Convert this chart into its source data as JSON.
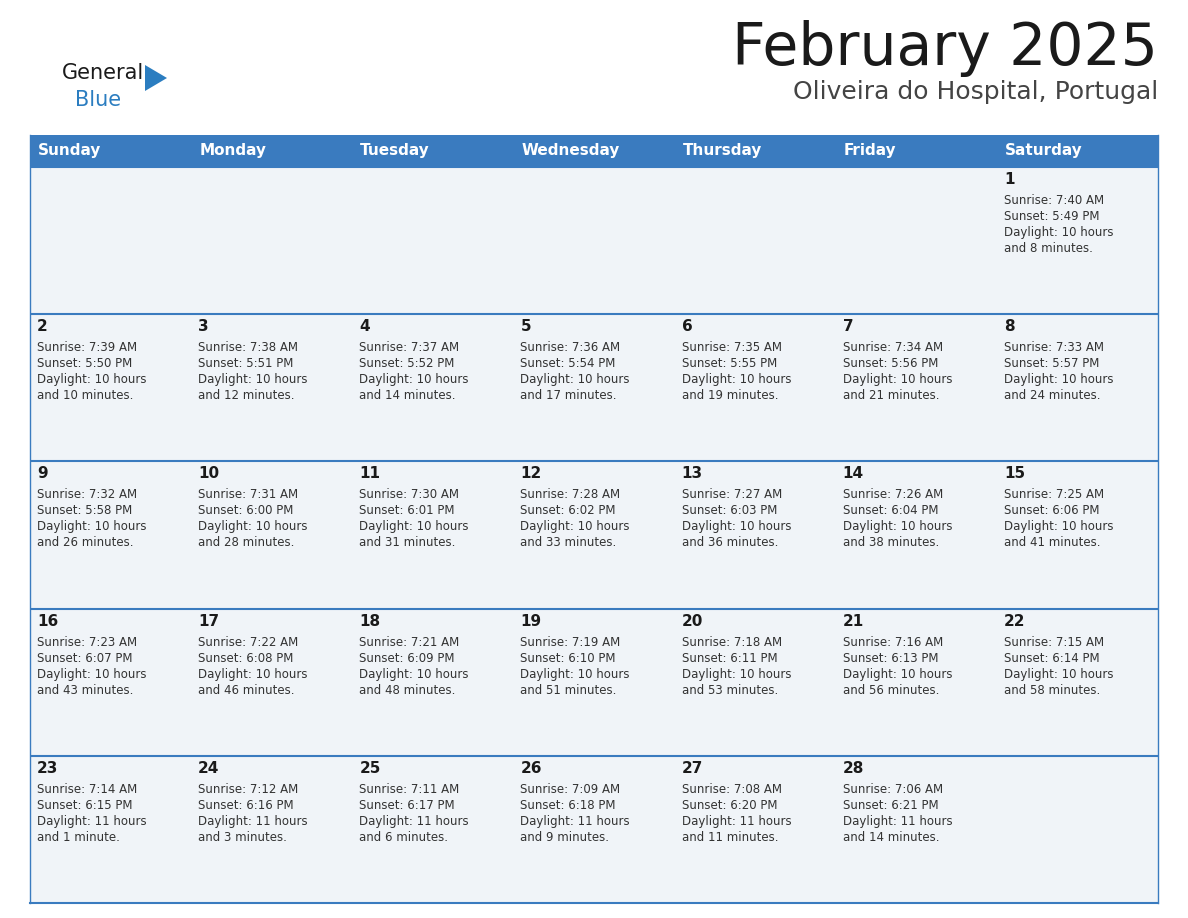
{
  "title": "February 2025",
  "subtitle": "Oliveira do Hospital, Portugal",
  "header_bg_color": "#3a7bbf",
  "header_text_color": "#ffffff",
  "row_bg_odd": "#f0f4f8",
  "row_bg_even": "#ffffff",
  "border_color": "#3a7bbf",
  "day_headers": [
    "Sunday",
    "Monday",
    "Tuesday",
    "Wednesday",
    "Thursday",
    "Friday",
    "Saturday"
  ],
  "title_color": "#1a1a1a",
  "subtitle_color": "#444444",
  "day_num_color": "#1a1a1a",
  "cell_text_color": "#333333",
  "logo_general_color": "#1a1a1a",
  "logo_blue_color": "#2b7dc0",
  "logo_triangle_color": "#2b7dc0",
  "days": [
    {
      "date": 1,
      "col": 6,
      "row": 0,
      "sunrise": "7:40 AM",
      "sunset": "5:49 PM",
      "daylight_line1": "Daylight: 10 hours",
      "daylight_line2": "and 8 minutes."
    },
    {
      "date": 2,
      "col": 0,
      "row": 1,
      "sunrise": "7:39 AM",
      "sunset": "5:50 PM",
      "daylight_line1": "Daylight: 10 hours",
      "daylight_line2": "and 10 minutes."
    },
    {
      "date": 3,
      "col": 1,
      "row": 1,
      "sunrise": "7:38 AM",
      "sunset": "5:51 PM",
      "daylight_line1": "Daylight: 10 hours",
      "daylight_line2": "and 12 minutes."
    },
    {
      "date": 4,
      "col": 2,
      "row": 1,
      "sunrise": "7:37 AM",
      "sunset": "5:52 PM",
      "daylight_line1": "Daylight: 10 hours",
      "daylight_line2": "and 14 minutes."
    },
    {
      "date": 5,
      "col": 3,
      "row": 1,
      "sunrise": "7:36 AM",
      "sunset": "5:54 PM",
      "daylight_line1": "Daylight: 10 hours",
      "daylight_line2": "and 17 minutes."
    },
    {
      "date": 6,
      "col": 4,
      "row": 1,
      "sunrise": "7:35 AM",
      "sunset": "5:55 PM",
      "daylight_line1": "Daylight: 10 hours",
      "daylight_line2": "and 19 minutes."
    },
    {
      "date": 7,
      "col": 5,
      "row": 1,
      "sunrise": "7:34 AM",
      "sunset": "5:56 PM",
      "daylight_line1": "Daylight: 10 hours",
      "daylight_line2": "and 21 minutes."
    },
    {
      "date": 8,
      "col": 6,
      "row": 1,
      "sunrise": "7:33 AM",
      "sunset": "5:57 PM",
      "daylight_line1": "Daylight: 10 hours",
      "daylight_line2": "and 24 minutes."
    },
    {
      "date": 9,
      "col": 0,
      "row": 2,
      "sunrise": "7:32 AM",
      "sunset": "5:58 PM",
      "daylight_line1": "Daylight: 10 hours",
      "daylight_line2": "and 26 minutes."
    },
    {
      "date": 10,
      "col": 1,
      "row": 2,
      "sunrise": "7:31 AM",
      "sunset": "6:00 PM",
      "daylight_line1": "Daylight: 10 hours",
      "daylight_line2": "and 28 minutes."
    },
    {
      "date": 11,
      "col": 2,
      "row": 2,
      "sunrise": "7:30 AM",
      "sunset": "6:01 PM",
      "daylight_line1": "Daylight: 10 hours",
      "daylight_line2": "and 31 minutes."
    },
    {
      "date": 12,
      "col": 3,
      "row": 2,
      "sunrise": "7:28 AM",
      "sunset": "6:02 PM",
      "daylight_line1": "Daylight: 10 hours",
      "daylight_line2": "and 33 minutes."
    },
    {
      "date": 13,
      "col": 4,
      "row": 2,
      "sunrise": "7:27 AM",
      "sunset": "6:03 PM",
      "daylight_line1": "Daylight: 10 hours",
      "daylight_line2": "and 36 minutes."
    },
    {
      "date": 14,
      "col": 5,
      "row": 2,
      "sunrise": "7:26 AM",
      "sunset": "6:04 PM",
      "daylight_line1": "Daylight: 10 hours",
      "daylight_line2": "and 38 minutes."
    },
    {
      "date": 15,
      "col": 6,
      "row": 2,
      "sunrise": "7:25 AM",
      "sunset": "6:06 PM",
      "daylight_line1": "Daylight: 10 hours",
      "daylight_line2": "and 41 minutes."
    },
    {
      "date": 16,
      "col": 0,
      "row": 3,
      "sunrise": "7:23 AM",
      "sunset": "6:07 PM",
      "daylight_line1": "Daylight: 10 hours",
      "daylight_line2": "and 43 minutes."
    },
    {
      "date": 17,
      "col": 1,
      "row": 3,
      "sunrise": "7:22 AM",
      "sunset": "6:08 PM",
      "daylight_line1": "Daylight: 10 hours",
      "daylight_line2": "and 46 minutes."
    },
    {
      "date": 18,
      "col": 2,
      "row": 3,
      "sunrise": "7:21 AM",
      "sunset": "6:09 PM",
      "daylight_line1": "Daylight: 10 hours",
      "daylight_line2": "and 48 minutes."
    },
    {
      "date": 19,
      "col": 3,
      "row": 3,
      "sunrise": "7:19 AM",
      "sunset": "6:10 PM",
      "daylight_line1": "Daylight: 10 hours",
      "daylight_line2": "and 51 minutes."
    },
    {
      "date": 20,
      "col": 4,
      "row": 3,
      "sunrise": "7:18 AM",
      "sunset": "6:11 PM",
      "daylight_line1": "Daylight: 10 hours",
      "daylight_line2": "and 53 minutes."
    },
    {
      "date": 21,
      "col": 5,
      "row": 3,
      "sunrise": "7:16 AM",
      "sunset": "6:13 PM",
      "daylight_line1": "Daylight: 10 hours",
      "daylight_line2": "and 56 minutes."
    },
    {
      "date": 22,
      "col": 6,
      "row": 3,
      "sunrise": "7:15 AM",
      "sunset": "6:14 PM",
      "daylight_line1": "Daylight: 10 hours",
      "daylight_line2": "and 58 minutes."
    },
    {
      "date": 23,
      "col": 0,
      "row": 4,
      "sunrise": "7:14 AM",
      "sunset": "6:15 PM",
      "daylight_line1": "Daylight: 11 hours",
      "daylight_line2": "and 1 minute."
    },
    {
      "date": 24,
      "col": 1,
      "row": 4,
      "sunrise": "7:12 AM",
      "sunset": "6:16 PM",
      "daylight_line1": "Daylight: 11 hours",
      "daylight_line2": "and 3 minutes."
    },
    {
      "date": 25,
      "col": 2,
      "row": 4,
      "sunrise": "7:11 AM",
      "sunset": "6:17 PM",
      "daylight_line1": "Daylight: 11 hours",
      "daylight_line2": "and 6 minutes."
    },
    {
      "date": 26,
      "col": 3,
      "row": 4,
      "sunrise": "7:09 AM",
      "sunset": "6:18 PM",
      "daylight_line1": "Daylight: 11 hours",
      "daylight_line2": "and 9 minutes."
    },
    {
      "date": 27,
      "col": 4,
      "row": 4,
      "sunrise": "7:08 AM",
      "sunset": "6:20 PM",
      "daylight_line1": "Daylight: 11 hours",
      "daylight_line2": "and 11 minutes."
    },
    {
      "date": 28,
      "col": 5,
      "row": 4,
      "sunrise": "7:06 AM",
      "sunset": "6:21 PM",
      "daylight_line1": "Daylight: 11 hours",
      "daylight_line2": "and 14 minutes."
    }
  ]
}
